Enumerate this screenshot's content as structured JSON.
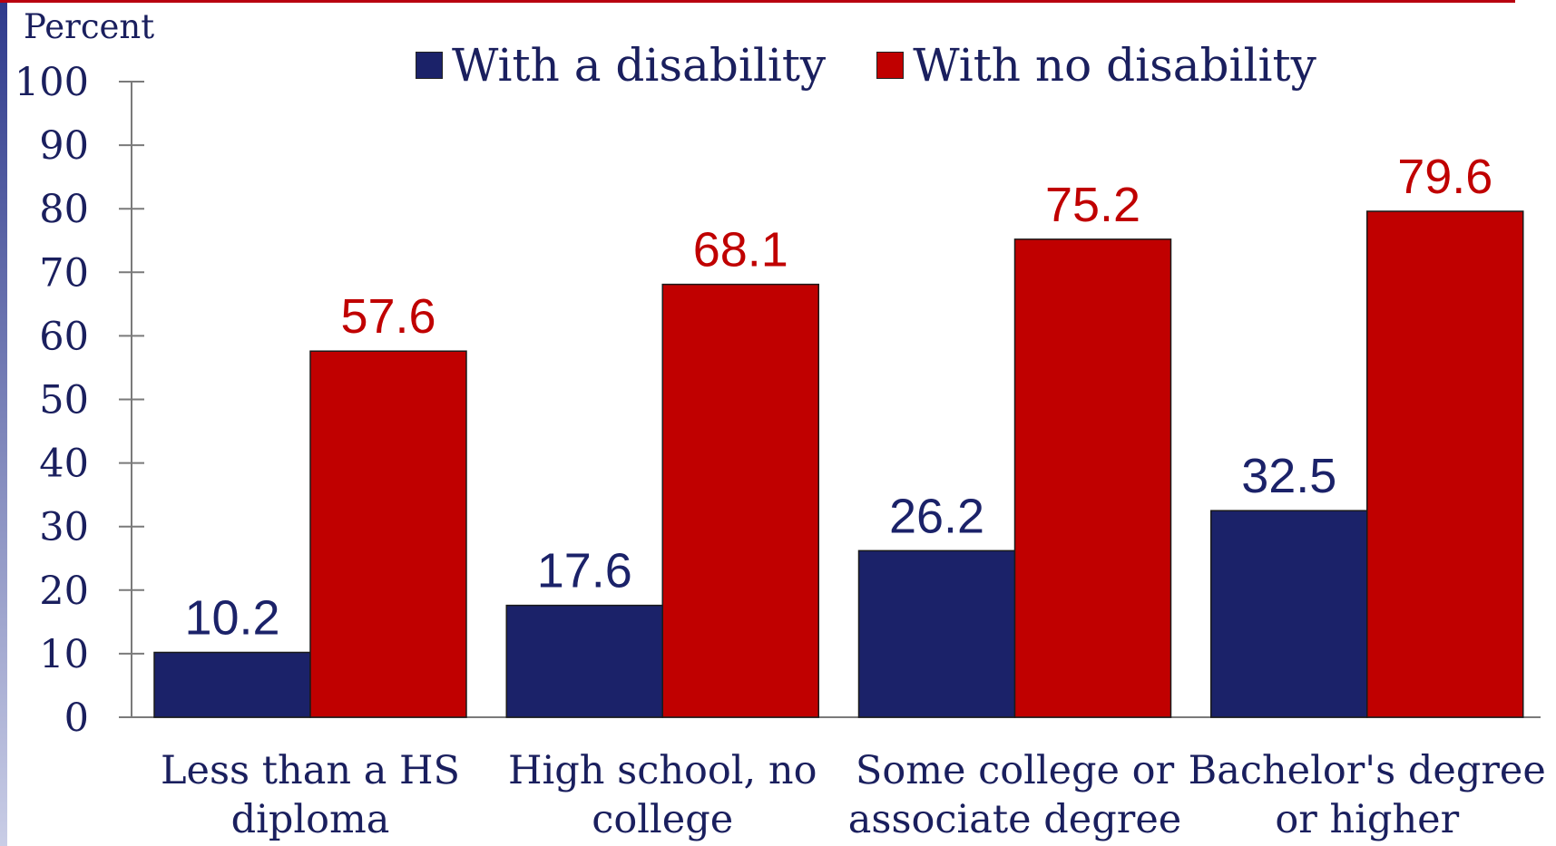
{
  "chart_data": {
    "type": "bar",
    "ylabel": "Percent",
    "ylim": [
      0,
      100
    ],
    "yticks": [
      0,
      10,
      20,
      30,
      40,
      50,
      60,
      70,
      80,
      90,
      100
    ],
    "categories": [
      [
        "Less than a HS",
        "diploma"
      ],
      [
        "High school, no",
        "college"
      ],
      [
        "Some college or",
        "associate degree"
      ],
      [
        "Bachelor's degree",
        "or higher"
      ]
    ],
    "series": [
      {
        "name": "With a disability",
        "values": [
          10.2,
          17.6,
          26.2,
          32.5
        ],
        "value_labels": [
          "10.2",
          "17.6",
          "26.2",
          "32.5"
        ],
        "color": "#1b2269"
      },
      {
        "name": "With no disability",
        "values": [
          57.6,
          68.1,
          75.2,
          79.6
        ],
        "value_labels": [
          "57.6",
          "68.1",
          "75.2",
          "79.6"
        ],
        "color": "#c00000"
      }
    ],
    "legend": "top-center",
    "grid": false
  }
}
